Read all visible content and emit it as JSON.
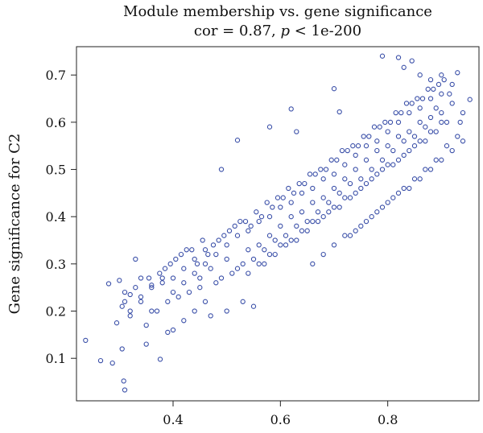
{
  "chart_data": {
    "type": "scatter",
    "title": "Module membership vs. gene significance",
    "subtitle": {
      "prefix": "cor = 0.87, ",
      "italic": "p",
      "suffix": " < 1e-200"
    },
    "xlabel": "",
    "ylabel": "Gene significance for C2",
    "xlim": [
      0.22,
      0.97
    ],
    "ylim": [
      0.01,
      0.76
    ],
    "xticks": [
      0.4,
      0.6,
      0.8
    ],
    "xtick_labels": [
      "0.4",
      "0.6",
      "0.8"
    ],
    "yticks": [
      0.1,
      0.2,
      0.3,
      0.4,
      0.5,
      0.6,
      0.7
    ],
    "ytick_labels": [
      "0.1",
      "0.2",
      "0.3",
      "0.4",
      "0.5",
      "0.6",
      "0.7"
    ],
    "grid": false,
    "legend": "none",
    "marker_color": "#3a4fa8",
    "series": [
      {
        "x": [
          0.237,
          0.265,
          0.287,
          0.305,
          0.308,
          0.31,
          0.28,
          0.3,
          0.32,
          0.35,
          0.376,
          0.39,
          0.36,
          0.34,
          0.33,
          0.31,
          0.295,
          0.305,
          0.32,
          0.34,
          0.36,
          0.38,
          0.4,
          0.42,
          0.44,
          0.46,
          0.48,
          0.5,
          0.52,
          0.54,
          0.56,
          0.58,
          0.6,
          0.62,
          0.64,
          0.66,
          0.68,
          0.7,
          0.72,
          0.74,
          0.76,
          0.78,
          0.8,
          0.82,
          0.84,
          0.86,
          0.88,
          0.9,
          0.92,
          0.94,
          0.953,
          0.52,
          0.49,
          0.58,
          0.62,
          0.63,
          0.7,
          0.71,
          0.79,
          0.82,
          0.83,
          0.845,
          0.86,
          0.88,
          0.9,
          0.93,
          0.44,
          0.46,
          0.4,
          0.42,
          0.45,
          0.47,
          0.5,
          0.53,
          0.55,
          0.57,
          0.59,
          0.61,
          0.63,
          0.65,
          0.67,
          0.69,
          0.71,
          0.73,
          0.75,
          0.77,
          0.79,
          0.81,
          0.83,
          0.85,
          0.87,
          0.89,
          0.91,
          0.35,
          0.37,
          0.39,
          0.41,
          0.43,
          0.45,
          0.47,
          0.49,
          0.51,
          0.53,
          0.55,
          0.57,
          0.59,
          0.61,
          0.63,
          0.65,
          0.67,
          0.69,
          0.71,
          0.73,
          0.75,
          0.77,
          0.79,
          0.81,
          0.83,
          0.85,
          0.87,
          0.89,
          0.32,
          0.34,
          0.36,
          0.38,
          0.4,
          0.42,
          0.44,
          0.46,
          0.48,
          0.5,
          0.52,
          0.54,
          0.56,
          0.58,
          0.6,
          0.62,
          0.64,
          0.66,
          0.68,
          0.7,
          0.72,
          0.74,
          0.76,
          0.78,
          0.8,
          0.82,
          0.84,
          0.86,
          0.88,
          0.9,
          0.92,
          0.31,
          0.33,
          0.355,
          0.375,
          0.395,
          0.415,
          0.435,
          0.455,
          0.475,
          0.495,
          0.515,
          0.535,
          0.555,
          0.575,
          0.595,
          0.615,
          0.635,
          0.655,
          0.675,
          0.695,
          0.715,
          0.735,
          0.755,
          0.775,
          0.795,
          0.815,
          0.835,
          0.855,
          0.875,
          0.895,
          0.915,
          0.935,
          0.385,
          0.405,
          0.425,
          0.445,
          0.465,
          0.485,
          0.505,
          0.525,
          0.545,
          0.565,
          0.585,
          0.605,
          0.625,
          0.645,
          0.665,
          0.685,
          0.705,
          0.725,
          0.745,
          0.765,
          0.785,
          0.805,
          0.825,
          0.845,
          0.865,
          0.885,
          0.905,
          0.54,
          0.56,
          0.58,
          0.6,
          0.62,
          0.64,
          0.66,
          0.68,
          0.7,
          0.72,
          0.74,
          0.76,
          0.78,
          0.8,
          0.82,
          0.84,
          0.86,
          0.88,
          0.9,
          0.66,
          0.68,
          0.7,
          0.72,
          0.74,
          0.76,
          0.78,
          0.8,
          0.82,
          0.84,
          0.86,
          0.88,
          0.9,
          0.92,
          0.94,
          0.73,
          0.75,
          0.77,
          0.79,
          0.81,
          0.83,
          0.85,
          0.87,
          0.89,
          0.91,
          0.93
        ],
        "y": [
          0.138,
          0.095,
          0.09,
          0.12,
          0.052,
          0.033,
          0.258,
          0.265,
          0.19,
          0.13,
          0.098,
          0.155,
          0.2,
          0.27,
          0.31,
          0.22,
          0.175,
          0.21,
          0.235,
          0.22,
          0.255,
          0.27,
          0.24,
          0.26,
          0.28,
          0.3,
          0.26,
          0.31,
          0.29,
          0.33,
          0.34,
          0.36,
          0.38,
          0.4,
          0.41,
          0.43,
          0.44,
          0.46,
          0.48,
          0.5,
          0.52,
          0.54,
          0.55,
          0.57,
          0.58,
          0.6,
          0.61,
          0.62,
          0.64,
          0.62,
          0.648,
          0.562,
          0.5,
          0.59,
          0.628,
          0.58,
          0.671,
          0.622,
          0.74,
          0.737,
          0.716,
          0.73,
          0.7,
          0.69,
          0.7,
          0.705,
          0.2,
          0.22,
          0.16,
          0.18,
          0.25,
          0.19,
          0.2,
          0.22,
          0.21,
          0.3,
          0.32,
          0.34,
          0.35,
          0.37,
          0.39,
          0.41,
          0.42,
          0.44,
          0.46,
          0.48,
          0.5,
          0.51,
          0.53,
          0.55,
          0.56,
          0.58,
          0.6,
          0.17,
          0.2,
          0.22,
          0.23,
          0.24,
          0.27,
          0.29,
          0.27,
          0.28,
          0.3,
          0.31,
          0.33,
          0.35,
          0.36,
          0.38,
          0.39,
          0.41,
          0.43,
          0.45,
          0.47,
          0.48,
          0.5,
          0.52,
          0.54,
          0.56,
          0.57,
          0.59,
          0.63,
          0.2,
          0.23,
          0.25,
          0.26,
          0.27,
          0.29,
          0.31,
          0.33,
          0.32,
          0.34,
          0.36,
          0.37,
          0.39,
          0.4,
          0.42,
          0.43,
          0.45,
          0.46,
          0.48,
          0.49,
          0.51,
          0.53,
          0.55,
          0.56,
          0.58,
          0.6,
          0.62,
          0.63,
          0.65,
          0.66,
          0.68,
          0.24,
          0.25,
          0.27,
          0.28,
          0.3,
          0.32,
          0.33,
          0.35,
          0.34,
          0.36,
          0.38,
          0.39,
          0.41,
          0.43,
          0.44,
          0.46,
          0.47,
          0.49,
          0.5,
          0.52,
          0.54,
          0.55,
          0.57,
          0.59,
          0.6,
          0.62,
          0.64,
          0.65,
          0.67,
          0.68,
          0.66,
          0.6,
          0.29,
          0.31,
          0.33,
          0.3,
          0.32,
          0.35,
          0.37,
          0.39,
          0.38,
          0.4,
          0.42,
          0.44,
          0.45,
          0.47,
          0.49,
          0.5,
          0.52,
          0.54,
          0.55,
          0.57,
          0.59,
          0.6,
          0.62,
          0.64,
          0.65,
          0.67,
          0.69,
          0.28,
          0.3,
          0.32,
          0.34,
          0.35,
          0.37,
          0.39,
          0.4,
          0.42,
          0.44,
          0.45,
          0.47,
          0.49,
          0.51,
          0.52,
          0.54,
          0.56,
          0.58,
          0.6,
          0.3,
          0.32,
          0.34,
          0.36,
          0.37,
          0.39,
          0.41,
          0.43,
          0.45,
          0.46,
          0.48,
          0.5,
          0.52,
          0.54,
          0.56,
          0.36,
          0.38,
          0.4,
          0.42,
          0.44,
          0.46,
          0.48,
          0.5,
          0.52,
          0.55,
          0.57
        ]
      }
    ]
  }
}
